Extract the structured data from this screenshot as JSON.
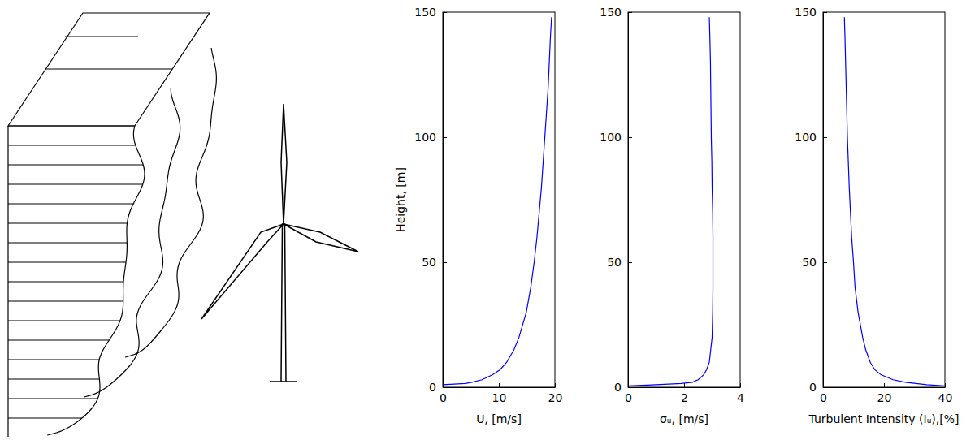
{
  "chart_data": [
    {
      "type": "line",
      "x_label": "U, [m/s]",
      "y_label": "Height, [m]",
      "color": "#0000ff",
      "xlim": [
        0,
        20
      ],
      "xticks": [
        0,
        10,
        20
      ],
      "ylim": [
        0,
        150
      ],
      "yticks": [
        0,
        50,
        100,
        150
      ],
      "x": [
        0,
        4,
        5.2,
        7,
        8.9,
        10.2,
        11.4,
        12.7,
        13.6,
        14.9,
        15.7,
        16.3,
        16.8,
        17.2,
        17.6,
        17.9,
        18.2,
        18.5,
        18.8,
        19.0,
        19.2,
        19.4
      ],
      "values": [
        1,
        1.5,
        2,
        3,
        5,
        7,
        10,
        15,
        20,
        30,
        40,
        50,
        60,
        70,
        80,
        90,
        100,
        110,
        120,
        130,
        140,
        148
      ]
    },
    {
      "type": "line",
      "x_label": "σᵤ, [m/s]",
      "color": "#0000ff",
      "xlim": [
        0,
        4
      ],
      "xticks": [
        0,
        2,
        4
      ],
      "ylim": [
        0,
        150
      ],
      "yticks": [
        0,
        50,
        100,
        150
      ],
      "x": [
        0,
        1.0,
        1.9,
        2.3,
        2.5,
        2.7,
        2.8,
        2.9,
        2.95,
        3.0,
        3.02,
        3.03,
        3.03,
        3.03,
        3.02,
        3.0,
        2.99,
        2.97,
        2.96,
        2.95,
        2.94,
        2.92,
        2.9
      ],
      "values": [
        0.5,
        1,
        1.5,
        2,
        3,
        5,
        7,
        10,
        15,
        20,
        30,
        40,
        50,
        60,
        70,
        80,
        90,
        100,
        110,
        120,
        130,
        140,
        148
      ]
    },
    {
      "type": "line",
      "x_label": "Turbulent Intensity (Iᵤ),[%]",
      "color": "#0000ff",
      "xlim": [
        0,
        40
      ],
      "xticks": [
        0,
        20,
        40
      ],
      "ylim": [
        0,
        150
      ],
      "yticks": [
        0,
        50,
        100,
        150
      ],
      "x": [
        40,
        34,
        27,
        23,
        19,
        17,
        15.5,
        14,
        13,
        11.5,
        10.5,
        10,
        9.4,
        9,
        8.6,
        8.3,
        8,
        7.8,
        7.6,
        7.4,
        7.2,
        7.0
      ],
      "values": [
        0.5,
        1,
        2,
        3,
        5,
        7,
        10,
        15,
        20,
        30,
        40,
        50,
        60,
        70,
        80,
        90,
        100,
        110,
        120,
        130,
        140,
        148
      ]
    }
  ]
}
